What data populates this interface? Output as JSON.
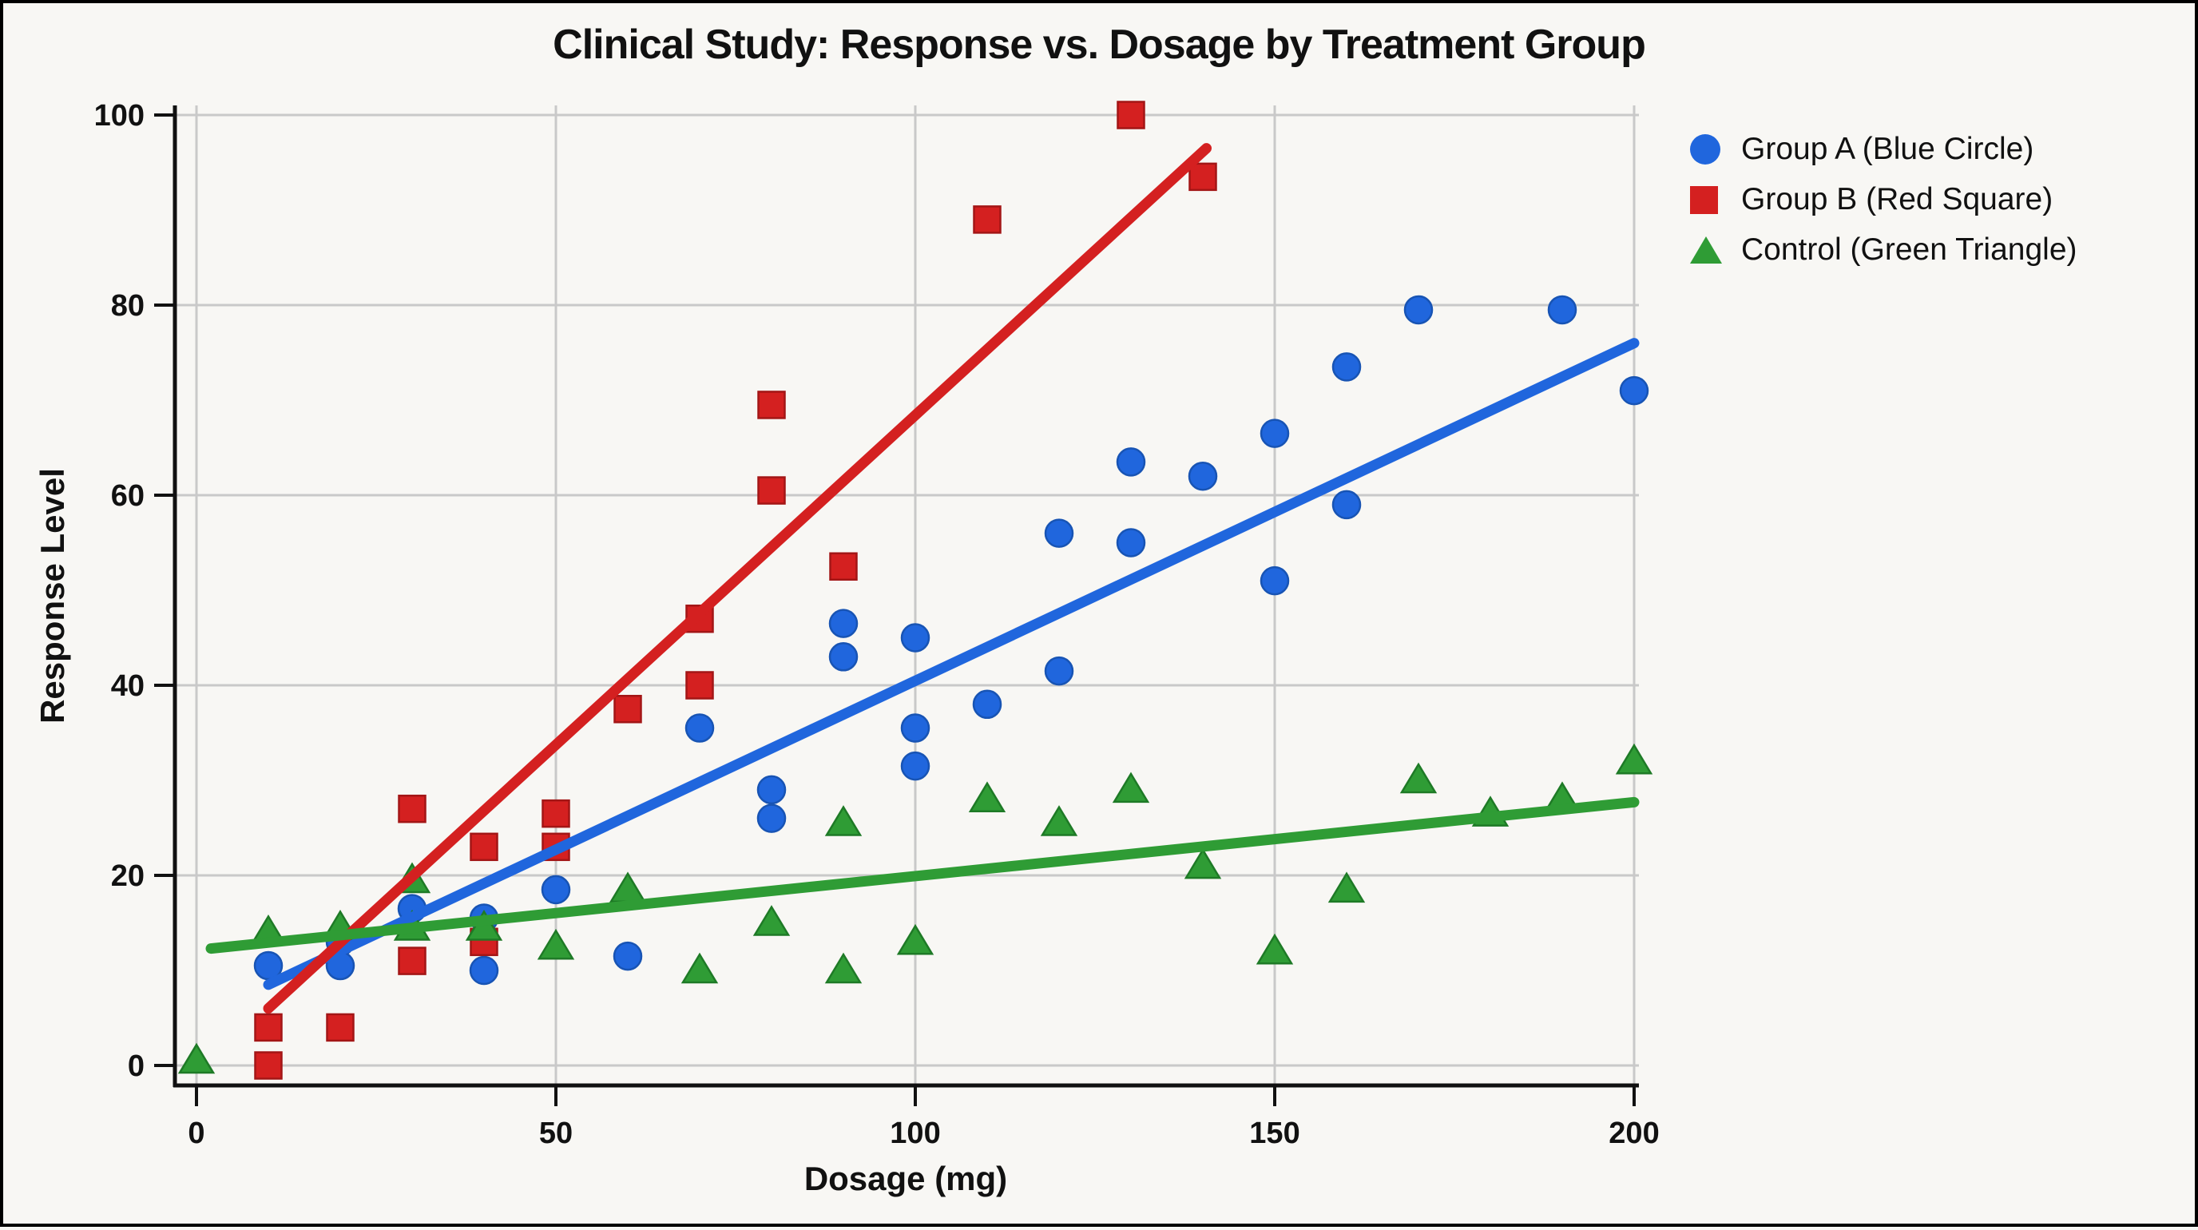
{
  "figure": {
    "title": "Clinical Study: Response vs. Dosage by Treatment Group"
  },
  "axes": {
    "x": {
      "label": "Dosage (mg)",
      "tick_labels": [
        "0",
        "50",
        "100",
        "150",
        "200"
      ],
      "min": 0,
      "max": 200
    },
    "y": {
      "label": "Response Level",
      "tick_labels": [
        "0",
        "20",
        "40",
        "60",
        "80",
        "100"
      ],
      "min": 0,
      "max": 100
    }
  },
  "legend": {
    "items": [
      {
        "label": "Group A (Blue Circle)",
        "marker": "circle",
        "color": "#2066dd"
      },
      {
        "label": "Group B (Red Square)",
        "marker": "square",
        "color": "#d42020"
      },
      {
        "label": "Control (Green Triangle)",
        "marker": "triangle",
        "color": "#2f9c35"
      }
    ]
  },
  "colors": {
    "background": "#f8f7f4",
    "grid": "#c9c9c9",
    "axis": "#111111",
    "text": "#111111",
    "blue": "#2066dd",
    "red": "#d42020",
    "green": "#2f9c35"
  },
  "chart_data": {
    "type": "scatter",
    "title": "Clinical Study: Response vs. Dosage by Treatment Group",
    "xlabel": "Dosage (mg)",
    "ylabel": "Response Level",
    "xlim": [
      0,
      200
    ],
    "ylim": [
      0,
      100
    ],
    "x_ticks": [
      0,
      50,
      100,
      150,
      200
    ],
    "y_ticks": [
      0,
      20,
      40,
      60,
      80,
      100
    ],
    "grid": true,
    "legend_position": "outside upper right",
    "series": [
      {
        "name": "Group A (Blue Circle)",
        "marker": "circle",
        "color": "#2066dd",
        "points": [
          [
            10,
            10.5
          ],
          [
            20,
            13
          ],
          [
            20,
            10.5
          ],
          [
            30,
            16.5
          ],
          [
            40,
            15.5
          ],
          [
            40,
            10
          ],
          [
            50,
            18.5
          ],
          [
            60,
            11.5
          ],
          [
            70,
            35.5
          ],
          [
            80,
            29
          ],
          [
            80,
            26
          ],
          [
            90,
            46.5
          ],
          [
            90,
            43
          ],
          [
            100,
            45
          ],
          [
            100,
            35.5
          ],
          [
            100,
            31.5
          ],
          [
            110,
            38
          ],
          [
            120,
            56
          ],
          [
            120,
            41.5
          ],
          [
            130,
            63.5
          ],
          [
            130,
            55
          ],
          [
            140,
            62
          ],
          [
            150,
            66.5
          ],
          [
            150,
            51
          ],
          [
            160,
            73.5
          ],
          [
            160,
            59
          ],
          [
            170,
            79.5
          ],
          [
            190,
            79.5
          ],
          [
            200,
            71
          ]
        ],
        "trend": {
          "x1": 10,
          "y1": 8.5,
          "x2": 200,
          "y2": 76
        }
      },
      {
        "name": "Group B (Red Square)",
        "marker": "square",
        "color": "#d42020",
        "points": [
          [
            10,
            4
          ],
          [
            10,
            0
          ],
          [
            20,
            4
          ],
          [
            30,
            27
          ],
          [
            30,
            11
          ],
          [
            40,
            23
          ],
          [
            40,
            13
          ],
          [
            50,
            26.5
          ],
          [
            50,
            23
          ],
          [
            60,
            37.5
          ],
          [
            70,
            47
          ],
          [
            70,
            40
          ],
          [
            80,
            69.5
          ],
          [
            80,
            60.5
          ],
          [
            90,
            52.5
          ],
          [
            110,
            89
          ],
          [
            130,
            100
          ],
          [
            140,
            93.5
          ]
        ],
        "trend": {
          "x1": 10,
          "y1": 6,
          "x2": 140.5,
          "y2": 96.5
        }
      },
      {
        "name": "Control (Green Triangle)",
        "marker": "triangle",
        "color": "#2f9c35",
        "points": [
          [
            0,
            0.5
          ],
          [
            10,
            14
          ],
          [
            20,
            14.5
          ],
          [
            30,
            19.5
          ],
          [
            30,
            14.5
          ],
          [
            40,
            14.5
          ],
          [
            50,
            12.5
          ],
          [
            60,
            18.5
          ],
          [
            70,
            10
          ],
          [
            80,
            15
          ],
          [
            90,
            25.5
          ],
          [
            90,
            10
          ],
          [
            100,
            13
          ],
          [
            110,
            28
          ],
          [
            120,
            25.5
          ],
          [
            130,
            29
          ],
          [
            140,
            21
          ],
          [
            150,
            12
          ],
          [
            160,
            18.5
          ],
          [
            170,
            30
          ],
          [
            180,
            26.5
          ],
          [
            190,
            28
          ],
          [
            200,
            32
          ]
        ],
        "trend": {
          "x1": 2,
          "y1": 12.3,
          "x2": 200,
          "y2": 27.7
        }
      }
    ]
  }
}
